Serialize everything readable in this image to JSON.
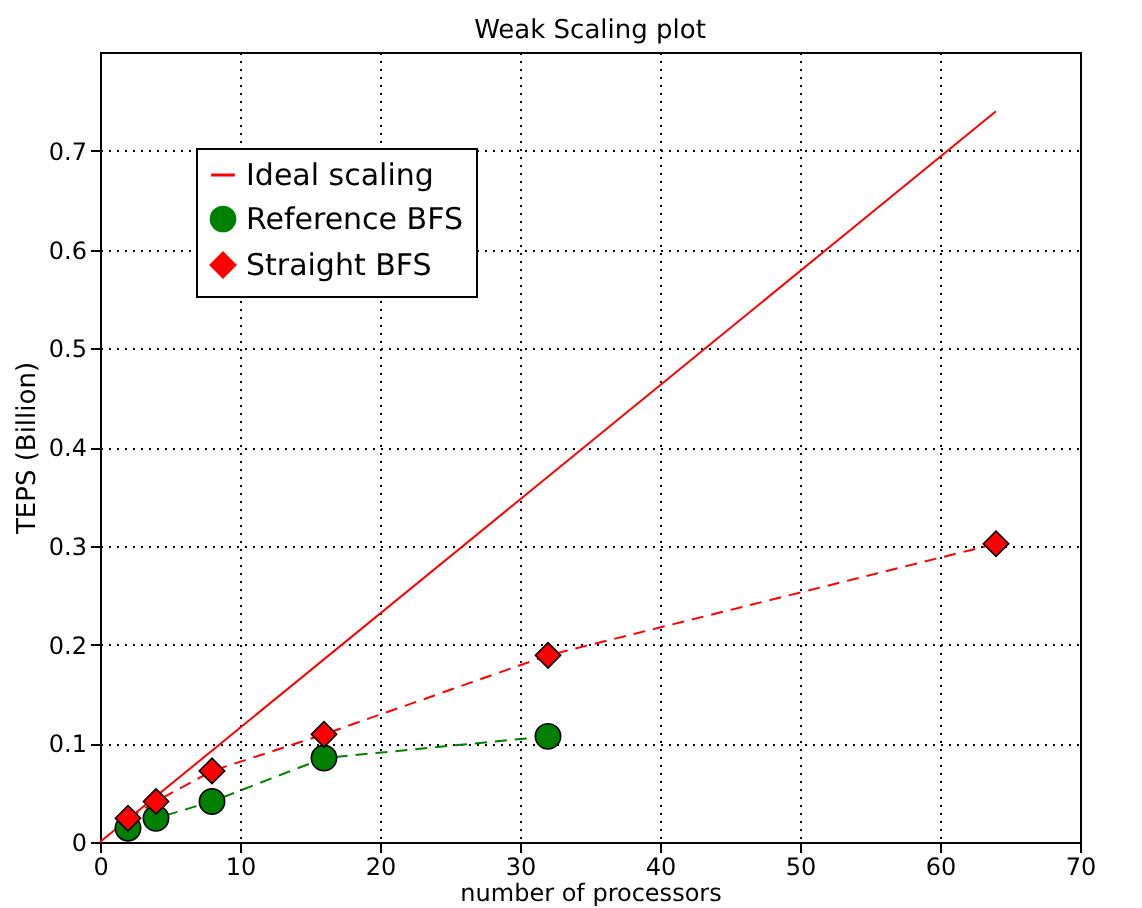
{
  "chart_data": {
    "type": "line",
    "title": "Weak Scaling plot",
    "xlabel": "number of processors",
    "ylabel": "TEPS (Billion)",
    "xlim": [
      0,
      70
    ],
    "xticks": [
      0,
      10,
      20,
      30,
      40,
      50,
      60,
      70
    ],
    "ylim": [
      0,
      0.8
    ],
    "yticks": [
      0,
      0.1,
      0.2,
      0.3,
      0.4,
      0.5,
      0.6,
      0.7
    ],
    "grid": true,
    "legend": "top left",
    "series": [
      {
        "name": "Ideal scaling",
        "color": "#ff0000",
        "x": [
          0,
          64
        ],
        "values": [
          0,
          0.74
        ],
        "marker": "none",
        "line_style": "solid"
      },
      {
        "name": "Reference BFS",
        "color": "#008000",
        "x": [
          2,
          4,
          8,
          16,
          32
        ],
        "values": [
          0.014,
          0.024,
          0.041,
          0.085,
          0.107
        ],
        "marker": "circle",
        "line_style": "dashed"
      },
      {
        "name": "Straight BFS",
        "color": "#ff0000",
        "x": [
          2,
          4,
          8,
          16,
          32,
          64
        ],
        "values": [
          0.024,
          0.041,
          0.072,
          0.109,
          0.189,
          0.302
        ],
        "marker": "diamond",
        "line_style": "dashed"
      }
    ]
  }
}
